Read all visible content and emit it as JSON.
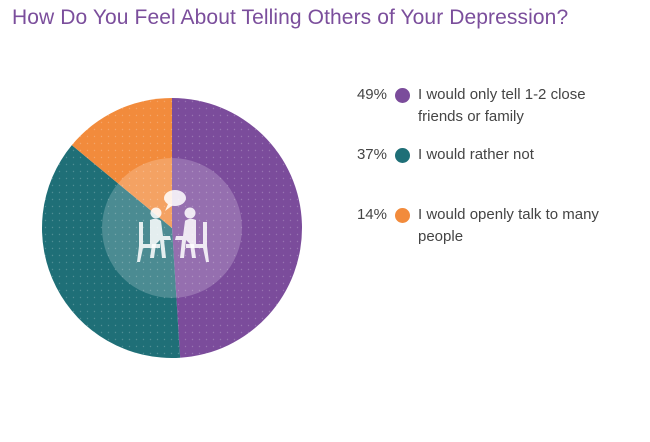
{
  "title": "How Do You Feel About Telling Others of Your Depression?",
  "colors": {
    "purple": "#7b4c9b",
    "teal": "#1f6f77",
    "orange": "#f28b3c",
    "title": "#7b4e9c"
  },
  "center_icon": "people-talking-icon",
  "chart_data": {
    "type": "pie",
    "start_angle_deg": 0,
    "direction": "clockwise",
    "slices": [
      {
        "label": "I would only tell 1-2 close friends or family",
        "value": 49,
        "pct_label": "49%",
        "color": "#7b4c9b"
      },
      {
        "label": "I would rather not",
        "value": 37,
        "pct_label": "37%",
        "color": "#1f6f77"
      },
      {
        "label": "I would openly talk to many people",
        "value": 14,
        "pct_label": "14%",
        "color": "#f28b3c"
      }
    ],
    "legend_position": "right"
  }
}
